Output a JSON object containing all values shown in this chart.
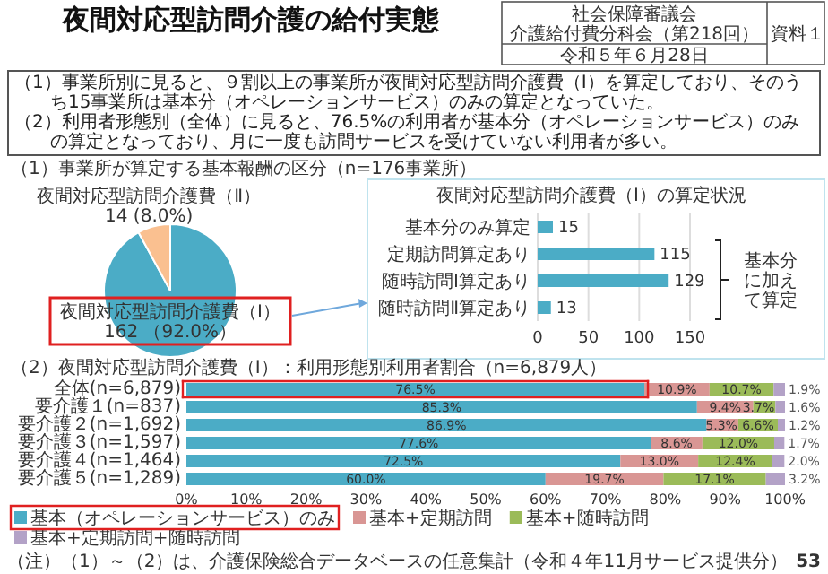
{
  "chart_data": [
    {
      "type": "other",
      "title": "夜間対応型訪問介護の給付実態",
      "annotations": [
        "社会保障審議会",
        "介護給付費分科会（第218回）",
        "令和５年６月28日",
        "資料１",
        "（1）事業所別に見ると、９割以上の事業所が夜間対応型訪問介護費（Ⅰ）を算定しており、そのうち15事業所は基本分（オペレーションサービス）のみの算定となっていた。",
        "（2）利用者形態別（全体）に見ると、76.5%の利用者が基本分（オペレーションサービス）のみの算定となっており、月に一度も訪問サービスを受けていない利用者が多い。",
        "（注）（1）～（2）は、介護保険総合データベースの任意集計（令和４年11月サービス提供分）",
        "53"
      ]
    },
    {
      "type": "pie",
      "title": "（1）事業所が算定する基本報酬の区分（n=176事業所）",
      "categories": [
        "夜間対応型訪問介護費（Ⅰ）",
        "夜間対応型訪問介護費（Ⅱ）"
      ],
      "values": [
        162,
        14
      ],
      "colors": [
        "#4bacc6",
        "#fac090"
      ],
      "value_labels": [
        "162 （92.0%）",
        "14 (8.0%)"
      ]
    },
    {
      "type": "bar",
      "orientation": "horizontal",
      "title": "夜間対応型訪問介護費（Ⅰ）の算定状況",
      "categories": [
        "基本分のみ算定",
        "定期訪問算定あり",
        "随時訪問Ⅰ算定あり",
        "随時訪問Ⅱ算定あり"
      ],
      "values": [
        15,
        115,
        129,
        13
      ],
      "color": "#4bacc6",
      "xlim": [
        0,
        150
      ],
      "xticks": [
        0,
        50,
        100,
        150
      ],
      "grid": "x",
      "data_labels": true,
      "annotations": [
        "基本分に加えて算定"
      ]
    },
    {
      "type": "bar",
      "orientation": "horizontal",
      "stacked": true,
      "title": "（2）夜間対応型訪問介護費（Ⅰ）：利用形態別利用者割合（n=6,879人）",
      "categories": [
        "全体(n=6,879)",
        "要介護１(n=837)",
        "要介護２(n=1,692)",
        "要介護３(n=1,597)",
        "要介護４(n=1,464)",
        "要介護５(n=1,289)"
      ],
      "xlim": [
        0,
        100
      ],
      "xticks": [
        {
          "value": 0,
          "label": "0%"
        },
        {
          "value": 10,
          "label": "10%"
        },
        {
          "value": 20,
          "label": "20%"
        },
        {
          "value": 30,
          "label": "30%"
        },
        {
          "value": 40,
          "label": "40%"
        },
        {
          "value": 50,
          "label": "50%"
        },
        {
          "value": 60,
          "label": "60%"
        },
        {
          "value": 70,
          "label": "70%"
        },
        {
          "value": 80,
          "label": "80%"
        },
        {
          "value": 90,
          "label": "90%"
        },
        {
          "value": 100,
          "label": "100%"
        }
      ],
      "legend": "bottom",
      "series": [
        {
          "name": "基本（オペレーションサービス）のみ",
          "color": "#4bacc6",
          "values": [
            76.5,
            85.3,
            86.9,
            77.6,
            72.5,
            60.0
          ],
          "value_labels": [
            "76.5%",
            "85.3%",
            "86.9%",
            "77.6%",
            "72.5%",
            "60.0%"
          ]
        },
        {
          "name": "基本+定期訪問",
          "color": "#d99694",
          "values": [
            10.9,
            9.4,
            5.3,
            8.6,
            13.0,
            19.7
          ],
          "value_labels": [
            "10.9%",
            "9.4%",
            "5.3%",
            "8.6%",
            "13.0%",
            "19.7%"
          ]
        },
        {
          "name": "基本+随時訪問",
          "color": "#9bbb59",
          "values": [
            10.7,
            3.7,
            6.6,
            12.0,
            12.4,
            17.1
          ],
          "value_labels": [
            "10.7%",
            "3.7%",
            "6.6%",
            "12.0%",
            "12.4%",
            "17.1%"
          ]
        },
        {
          "name": "基本+定期訪問+随時訪問",
          "color": "#b3a2c7",
          "values": [
            1.9,
            1.6,
            1.2,
            1.7,
            2.0,
            3.2
          ],
          "value_labels": [
            "1.9%",
            "1.6%",
            "1.2%",
            "1.7%",
            "2.0%",
            "3.2%"
          ]
        }
      ]
    }
  ]
}
